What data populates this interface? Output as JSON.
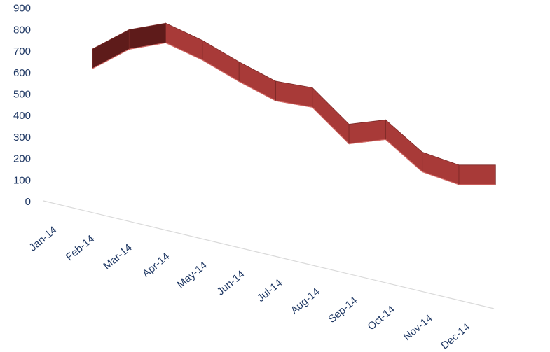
{
  "chart_data": {
    "type": "line",
    "style": "3d-ribbon",
    "categories": [
      "Jan-14",
      "Feb-14",
      "Mar-14",
      "Apr-14",
      "May-14",
      "Jun-14",
      "Jul-14",
      "Aug-14",
      "Sep-14",
      "Oct-14",
      "Nov-14",
      "Dec-14"
    ],
    "series": [
      {
        "values": [
          710,
          800,
          830,
          750,
          650,
          560,
          530,
          360,
          380,
          230,
          170,
          170
        ],
        "color": "#a83a38"
      }
    ],
    "yticks": [
      0,
      100,
      200,
      300,
      400,
      500,
      600,
      700,
      800,
      900
    ],
    "ylim": [
      0,
      900
    ],
    "title": "",
    "xlabel": "",
    "ylabel": "",
    "grid": false,
    "legend": "none",
    "colors": {
      "axis_text": "#1f3864",
      "ribbon_top": "#a83a38",
      "ribbon_side": "#5e1b1a",
      "axis_line": "#d9d9d9"
    }
  }
}
